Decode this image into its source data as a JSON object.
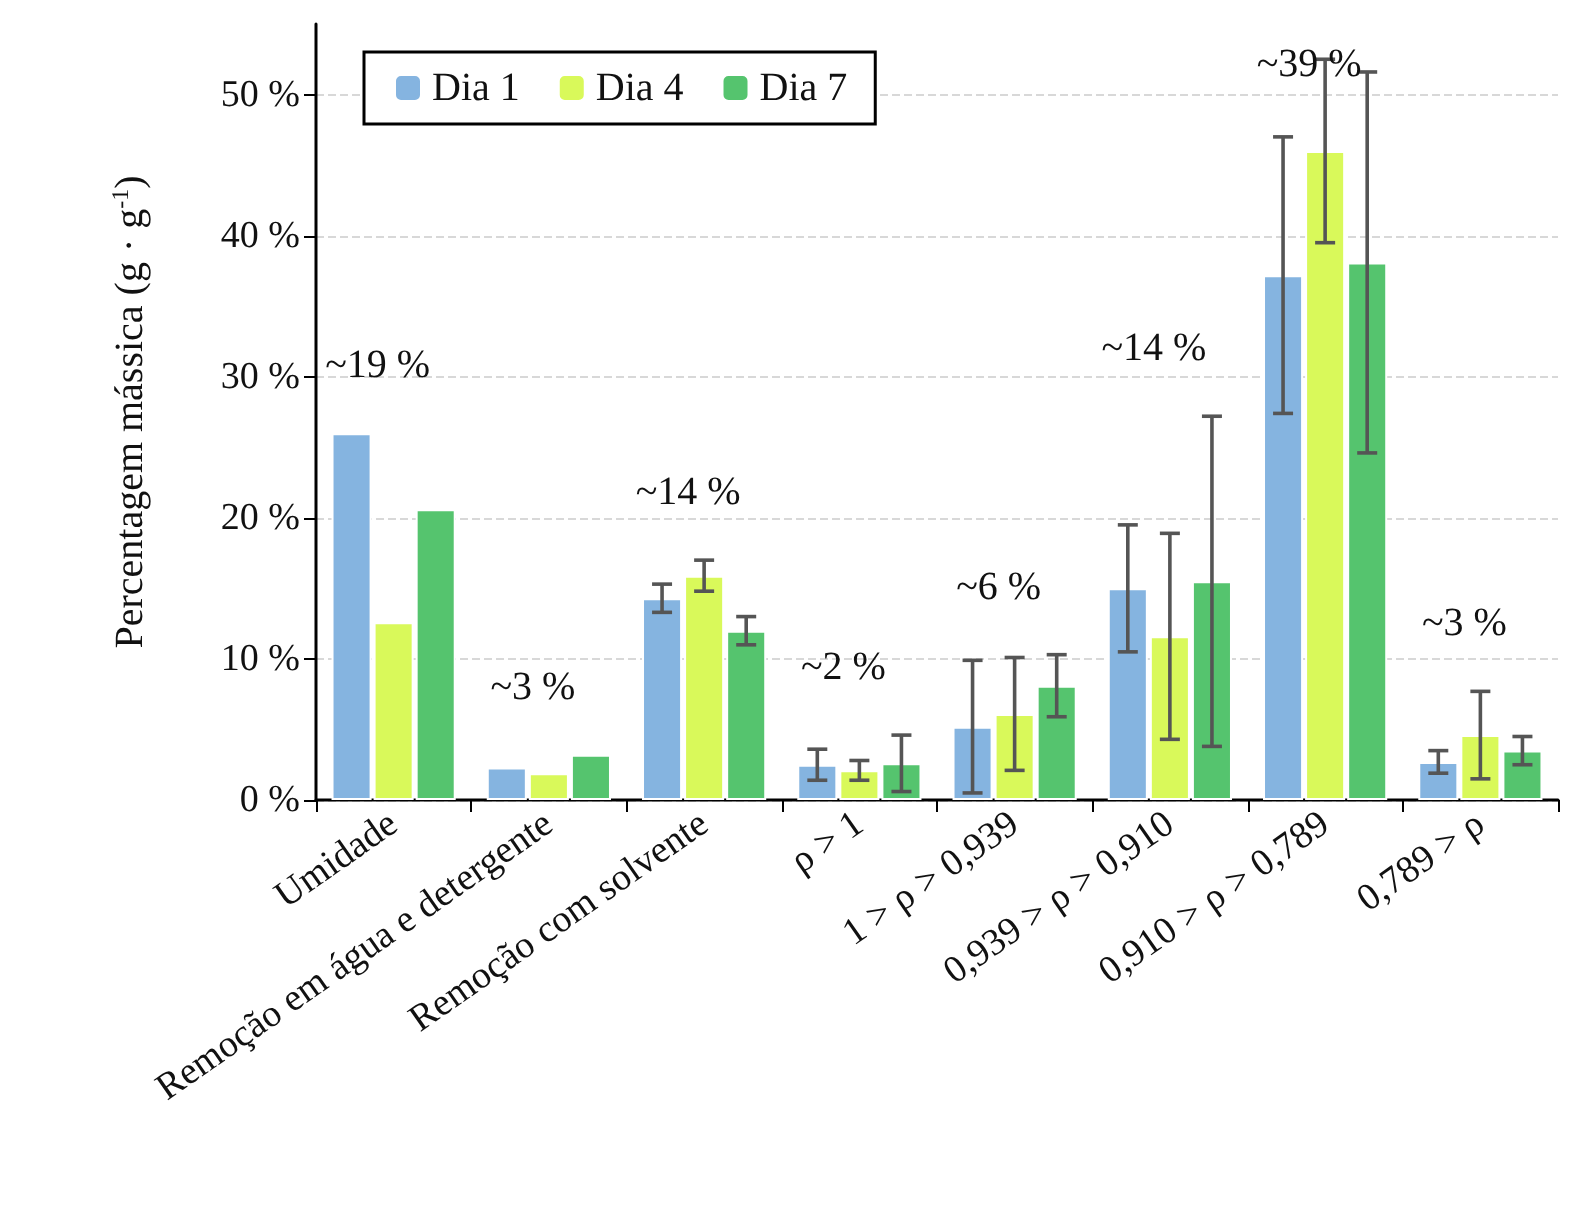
{
  "chart_data": {
    "type": "bar",
    "ylabel": "Percentagem mássica (g · g$^{-1}$)",
    "categories": [
      "Umidade",
      "Remoção em água e detergente",
      "Remoção com solvente",
      "ρ > 1",
      "1 > ρ > 0,939",
      "0,939 > ρ > 0,910",
      "0,910 > ρ > 0,789",
      "0,789 > ρ"
    ],
    "series": [
      {
        "name": "Dia 1",
        "color": "#85b4e0",
        "values": [
          26.0,
          2.3,
          14.3,
          2.5,
          5.2,
          15.0,
          37.2,
          2.7
        ],
        "errors": [
          null,
          null,
          1.0,
          1.1,
          4.7,
          4.5,
          9.8,
          0.8
        ]
      },
      {
        "name": "Dia 4",
        "color": "#d9f95a",
        "values": [
          12.6,
          1.9,
          15.9,
          2.1,
          6.1,
          11.6,
          46.0,
          4.6
        ],
        "errors": [
          null,
          null,
          1.1,
          0.7,
          4.0,
          7.3,
          6.5,
          3.1
        ]
      },
      {
        "name": "Dia 7",
        "color": "#55c46e",
        "values": [
          20.6,
          3.2,
          12.0,
          2.6,
          8.1,
          15.5,
          38.1,
          3.5
        ],
        "errors": [
          null,
          null,
          1.0,
          2.0,
          2.2,
          11.7,
          13.5,
          1.0
        ]
      }
    ],
    "ylim": [
      0,
      55
    ],
    "yticks": [
      {
        "value": 0,
        "label": "0 %"
      },
      {
        "value": 10,
        "label": "10 %"
      },
      {
        "value": 20,
        "label": "20 %"
      },
      {
        "value": 30,
        "label": "30 %"
      },
      {
        "value": 40,
        "label": "40 %"
      },
      {
        "value": 50,
        "label": "50 %"
      }
    ],
    "annotations": [
      "~19 %",
      "~3 %",
      "~14 %",
      "~2 %",
      "~6 %",
      "~14 %",
      "~39 %",
      "~3 %"
    ],
    "grid": "y",
    "legend": "top left"
  }
}
